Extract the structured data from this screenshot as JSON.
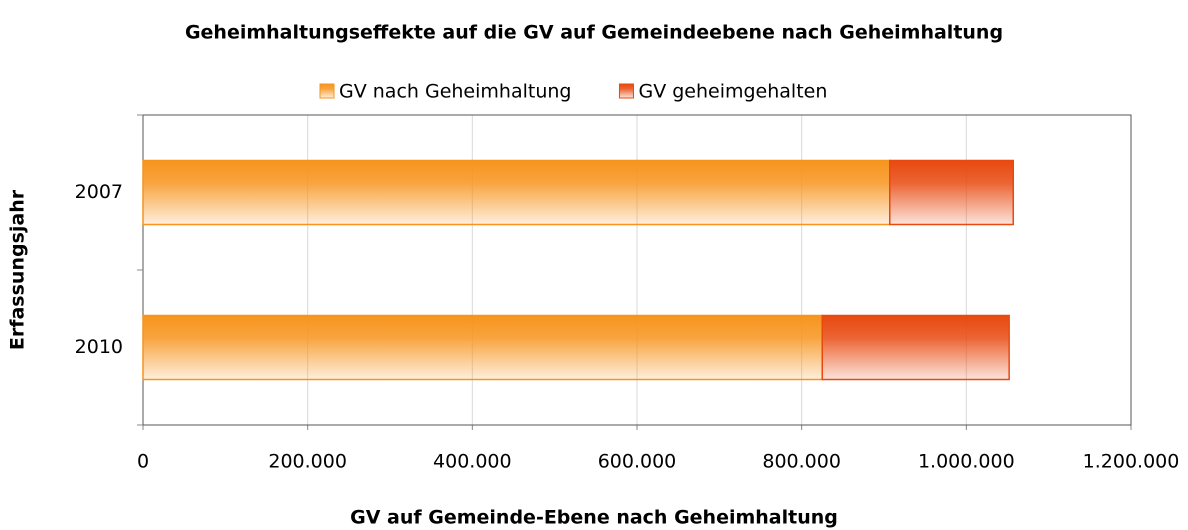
{
  "chart_data": {
    "type": "stacked-barh",
    "title": "Geheimhaltungseffekte auf die GV auf Gemeindeebene nach Geheimhaltung",
    "x_label": "GV auf Gemeinde-Ebene nach Geheimhaltung",
    "y_label": "Erfassungsjahr",
    "categories": [
      "2007",
      "2010"
    ],
    "series": [
      {
        "name": "GV nach Geheimhaltung",
        "color": "#f7941d",
        "values": [
          907000,
          825000
        ]
      },
      {
        "name": "GV geheimgehalten",
        "color": "#e8490f",
        "values": [
          150000,
          227000
        ]
      }
    ],
    "xlim": [
      0,
      1200000
    ],
    "xticks": [
      0,
      {
        "value": 200000,
        "label": "200.000"
      },
      {
        "value": 400000,
        "label": "400.000"
      },
      {
        "value": 600000,
        "label": "600.000"
      },
      {
        "value": 800000,
        "label": "800.000"
      },
      {
        "value": 1000000,
        "label": "1.000.000"
      },
      {
        "value": 1200000,
        "label": "1.200.000"
      }
    ],
    "grid": true,
    "legend": "top"
  }
}
